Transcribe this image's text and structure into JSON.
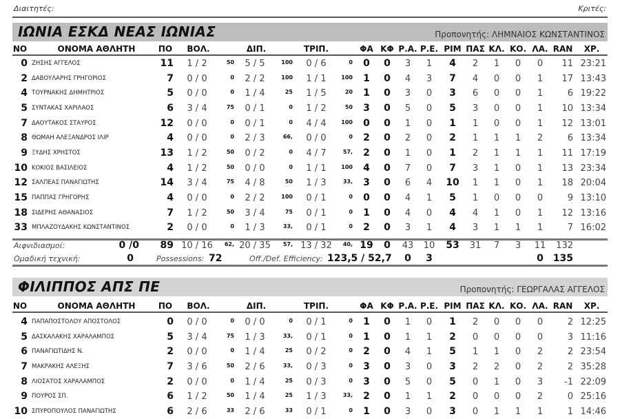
{
  "header": {
    "referees_label": "Διαιτητές:",
    "judges_label": "Κριτές:"
  },
  "columns": [
    "ΝΟ",
    "ΟΝΟΜΑ ΑΘΛΗΤΗ",
    "ΠΟ",
    "ΒΟΛ.",
    "ΔΙΠ.",
    "ΤΡΙΠ.",
    "ΦΑ",
    "ΚΦ",
    "Ρ.Α.",
    "Ρ.Ε.",
    "ΡΙΜ",
    "ΠΑΣ",
    "ΚΛ.",
    "ΚΟ.",
    "ΛΑ.",
    "RAN",
    "ΧΡ."
  ],
  "teams": [
    {
      "name": "ΙΩΝΙΑ ΕΣΚΔ ΝΕΑΣ ΙΩΝΙΑΣ",
      "coach": "Προπονητής: ΛΗΜΝΑΙΟΣ ΚΩΝΣΤΑΝΤΙΝΟΣ",
      "bar_color": "#bdbdbd",
      "players": [
        [
          "0",
          "ΖΗΣΗΣ ΑΓΓΕΛΟΣ",
          "11",
          "1 / 2",
          "50",
          "5 / 5",
          "100",
          "0 / 6",
          "0",
          "0",
          "0",
          "3",
          "1",
          "4",
          "2",
          "1",
          "0",
          "0",
          "11",
          "23:21"
        ],
        [
          "2",
          "ΔΑΒΟΥΛΑΡΗΣ ΓΡΗΓΟΡΙΟΣ",
          "7",
          "0 / 0",
          "0",
          "2 / 2",
          "100",
          "1 / 1",
          "100",
          "1",
          "0",
          "4",
          "3",
          "7",
          "4",
          "0",
          "0",
          "1",
          "17",
          "13:43"
        ],
        [
          "4",
          "ΤΟΥΡΝΑΚΗΣ ΔΗΜΗΤΡΙΟΣ",
          "5",
          "0 / 0",
          "0",
          "1 / 4",
          "25",
          "1 / 5",
          "20",
          "1",
          "0",
          "3",
          "0",
          "3",
          "6",
          "0",
          "0",
          "1",
          "6",
          "19:22"
        ],
        [
          "5",
          "ΣΥΝΤΑΚΑΣ ΧΑΡΙΛΑΟΣ",
          "6",
          "3 / 4",
          "75",
          "0 / 1",
          "0",
          "1 / 2",
          "50",
          "3",
          "0",
          "5",
          "0",
          "5",
          "3",
          "0",
          "0",
          "1",
          "10",
          "13:34"
        ],
        [
          "7",
          "ΔΑΟΥΤΑΚΟΣ ΣΤΑΥΡΟΣ",
          "12",
          "0 / 0",
          "0",
          "0 / 1",
          "0",
          "4 / 4",
          "100",
          "0",
          "0",
          "1",
          "0",
          "1",
          "1",
          "0",
          "0",
          "1",
          "12",
          "13:01"
        ],
        [
          "8",
          "ΘΩΜΑΗ ΑΛΕΞΑΝΔΡΟΣ ΙΛΙΡ",
          "4",
          "0 / 0",
          "0",
          "2 / 3",
          "66,",
          "0 / 0",
          "0",
          "2",
          "0",
          "2",
          "0",
          "2",
          "1",
          "1",
          "1",
          "2",
          "6",
          "13:34"
        ],
        [
          "9",
          "ΞΥΔΗΣ ΧΡΗΣΤΟΣ",
          "13",
          "1 / 2",
          "50",
          "0 / 2",
          "0",
          "4 / 7",
          "57,",
          "2",
          "0",
          "1",
          "0",
          "1",
          "2",
          "1",
          "1",
          "1",
          "11",
          "17:19"
        ],
        [
          "10",
          "ΚΟΚΙΟΣ ΒΑΣΙΛΕΙΟΣ",
          "4",
          "1 / 2",
          "50",
          "0 / 0",
          "0",
          "1 / 1",
          "100",
          "4",
          "0",
          "7",
          "0",
          "7",
          "3",
          "1",
          "0",
          "1",
          "13",
          "23:34"
        ],
        [
          "12",
          "ΣΑΛΠΕΑΣ ΠΑΝΑΓΙΩΤΗΣ",
          "14",
          "3 / 4",
          "75",
          "4 / 8",
          "50",
          "1 / 3",
          "33,",
          "3",
          "0",
          "6",
          "4",
          "10",
          "1",
          "1",
          "0",
          "1",
          "18",
          "20:04"
        ],
        [
          "15",
          "ΠΑΠΠΑΣ ΓΡΗΓΟΡΗΣ",
          "4",
          "0 / 0",
          "0",
          "2 / 2",
          "100",
          "0 / 1",
          "0",
          "0",
          "0",
          "4",
          "1",
          "5",
          "1",
          "0",
          "0",
          "0",
          "9",
          "13:10"
        ],
        [
          "18",
          "ΣΙΔΕΡΗΣ ΑΘΑΝΑΣΙΟΣ",
          "7",
          "1 / 2",
          "50",
          "3 / 4",
          "75",
          "0 / 1",
          "0",
          "1",
          "0",
          "4",
          "0",
          "4",
          "4",
          "1",
          "0",
          "1",
          "12",
          "13:16"
        ],
        [
          "33",
          "ΜΠΛΑΖΟΥΔΑΚΗΣ ΚΩΝΣΤΑΝΤΙΝΟΣ",
          "2",
          "0 / 0",
          "0",
          "1 / 3",
          "33,",
          "0 / 1",
          "0",
          "2",
          "0",
          "3",
          "1",
          "4",
          "3",
          "1",
          "1",
          "1",
          "7",
          "16:02"
        ]
      ],
      "totals": {
        "fastbreak_label": "Αιφνιδιασμοί:",
        "fastbreak": "0 /0",
        "row": [
          "89",
          "10 / 16",
          "62,",
          "20 / 35",
          "57,",
          "13 / 32",
          "40,",
          "19",
          "0",
          "43",
          "10",
          "53",
          "31",
          "7",
          "3",
          "11",
          "132"
        ],
        "team_tech_label": "Ομαδική τεχνική:",
        "team_tech": "0",
        "possessions_label": "Possessions:",
        "possessions": "72",
        "efficiency_label": "Off./Def. Efficiency:",
        "efficiency": "123,5 / 52,7",
        "team_ra": "0",
        "team_re": "3",
        "team_la": "0",
        "team_ran": "135"
      }
    },
    {
      "name": "ΦΙΛΙΠΠΟΣ ΑΠΣ ΠΕ",
      "coach": "Προπονητής: ΓΕΩΡΓΑΛΑΣ ΑΓΓΕΛΟΣ",
      "bar_color": "#d3d3d3",
      "players": [
        [
          "4",
          "ΠΑΠΑΠΟΣΤΟΛΟΥ ΑΠΟΣΤΟΛΟΣ",
          "0",
          "0 / 0",
          "0",
          "0 / 0",
          "0",
          "0 / 1",
          "0",
          "1",
          "0",
          "1",
          "0",
          "1",
          "2",
          "0",
          "0",
          "0",
          "2",
          "12:25"
        ],
        [
          "5",
          "ΔΑΣΚΑΛΑΚΗΣ ΧΑΡΑΛΑΜΠΟΣ",
          "5",
          "3 / 4",
          "75",
          "1 / 3",
          "33,",
          "0 / 1",
          "0",
          "1",
          "0",
          "1",
          "1",
          "2",
          "0",
          "0",
          "0",
          "0",
          "3",
          "11:16"
        ],
        [
          "6",
          "ΠΑΝΑΓΙΩΤΙΔΗΣ Ν.",
          "2",
          "0 / 0",
          "0",
          "1 / 4",
          "25",
          "0 / 2",
          "0",
          "2",
          "0",
          "4",
          "1",
          "5",
          "1",
          "1",
          "0",
          "2",
          "2",
          "23:54"
        ],
        [
          "7",
          "ΜΑΚΡΑΚΗΣ ΑΛΕΞΗΣ",
          "7",
          "3 / 6",
          "50",
          "2 / 6",
          "33,",
          "0 / 3",
          "0",
          "3",
          "0",
          "3",
          "0",
          "3",
          "2",
          "2",
          "0",
          "2",
          "2",
          "35:28"
        ],
        [
          "8",
          "ΛΙΟΣΑΤΟΣ ΧΑΡΑΛΑΜΠΟΣ",
          "2",
          "0 / 0",
          "0",
          "1 / 4",
          "25",
          "0 / 3",
          "0",
          "3",
          "0",
          "5",
          "0",
          "5",
          "0",
          "1",
          "0",
          "3",
          "-1",
          "22:09"
        ],
        [
          "9",
          "ΠΟΥΡΟΣ ΣΠ.",
          "6",
          "1 / 2",
          "50",
          "1 / 4",
          "25",
          "1 / 3",
          "33,",
          "2",
          "0",
          "1",
          "1",
          "2",
          "0",
          "0",
          "0",
          "2",
          "0",
          "25:16"
        ],
        [
          "10",
          "ΣΠΥΡΟΠΟΥΛΟΣ ΠΑΝΑΓΙΩΤΗΣ",
          "6",
          "2 / 6",
          "33",
          "2 / 6",
          "33",
          "0 / 1",
          "0",
          "1",
          "0",
          "3",
          "0",
          "3",
          "0",
          "1",
          "1",
          "1",
          "1",
          "14:46"
        ]
      ]
    }
  ]
}
